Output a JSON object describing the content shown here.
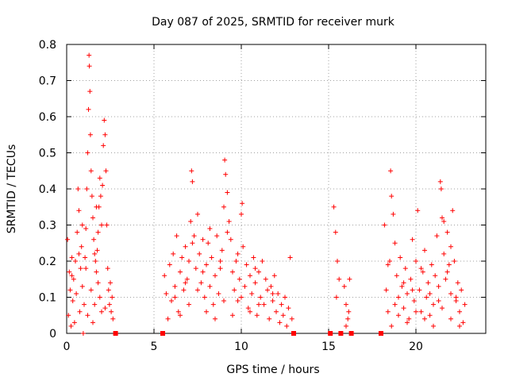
{
  "chart_data": {
    "type": "scatter",
    "title": "Day 087 of 2025, SRMTID for receiver murk",
    "xlabel": "GPS time / hours",
    "ylabel": "SRMTID / TECUs",
    "xlim": [
      0,
      24
    ],
    "ylim": [
      0,
      0.8
    ],
    "xticks": [
      0,
      5,
      10,
      15,
      20
    ],
    "yticks": [
      0,
      0.1,
      0.2,
      0.3,
      0.4,
      0.5,
      0.6,
      0.7,
      0.8
    ],
    "xtick_labels": [
      "0",
      "5",
      "10",
      "15",
      "20"
    ],
    "ytick_labels": [
      "0",
      "0.1",
      "0.2",
      "0.3",
      "0.4",
      "0.5",
      "0.6",
      "0.7",
      "0.8"
    ],
    "grid": true,
    "marker": "+",
    "color": "#ff0000",
    "series": [
      {
        "name": "SRMTID",
        "points": [
          [
            0.05,
            0.26
          ],
          [
            0.1,
            0.05
          ],
          [
            0.15,
            0.17
          ],
          [
            0.2,
            0.12
          ],
          [
            0.25,
            0.02
          ],
          [
            0.3,
            0.21
          ],
          [
            0.35,
            0.09
          ],
          [
            0.4,
            0.15
          ],
          [
            0.45,
            0.03
          ],
          [
            0.5,
            0.2
          ],
          [
            0.55,
            0.11
          ],
          [
            0.6,
            0.28
          ],
          [
            0.65,
            0.4
          ],
          [
            0.7,
            0.34
          ],
          [
            0.75,
            0.06
          ],
          [
            0.8,
            0.18
          ],
          [
            0.85,
            0.24
          ],
          [
            0.9,
            0.13
          ],
          [
            0.95,
            0.0
          ],
          [
            1.0,
            0.08
          ],
          [
            1.05,
            0.21
          ],
          [
            1.1,
            0.29
          ],
          [
            1.15,
            0.4
          ],
          [
            1.2,
            0.5
          ],
          [
            1.25,
            0.62
          ],
          [
            1.28,
            0.77
          ],
          [
            1.3,
            0.74
          ],
          [
            1.33,
            0.67
          ],
          [
            1.36,
            0.55
          ],
          [
            1.4,
            0.45
          ],
          [
            1.45,
            0.38
          ],
          [
            1.5,
            0.32
          ],
          [
            1.55,
            0.26
          ],
          [
            1.6,
            0.22
          ],
          [
            1.65,
            0.2
          ],
          [
            1.7,
            0.17
          ],
          [
            1.75,
            0.23
          ],
          [
            1.8,
            0.28
          ],
          [
            1.85,
            0.35
          ],
          [
            1.9,
            0.43
          ],
          [
            1.95,
            0.38
          ],
          [
            2.0,
            0.3
          ],
          [
            2.05,
            0.41
          ],
          [
            2.1,
            0.52
          ],
          [
            2.15,
            0.59
          ],
          [
            2.2,
            0.55
          ],
          [
            2.25,
            0.45
          ],
          [
            2.3,
            0.3
          ],
          [
            2.35,
            0.18
          ],
          [
            2.4,
            0.12
          ],
          [
            2.45,
            0.08
          ],
          [
            2.5,
            0.14
          ],
          [
            2.55,
            0.06
          ],
          [
            2.6,
            0.1
          ],
          [
            2.65,
            0.04
          ],
          [
            1.2,
            0.05
          ],
          [
            1.4,
            0.12
          ],
          [
            1.6,
            0.08
          ],
          [
            1.8,
            0.14
          ],
          [
            2.0,
            0.06
          ],
          [
            0.3,
            0.16
          ],
          [
            0.7,
            0.22
          ],
          [
            1.1,
            0.18
          ],
          [
            1.5,
            0.03
          ],
          [
            1.9,
            0.1
          ],
          [
            2.2,
            0.07
          ],
          [
            0.9,
            0.3
          ],
          [
            1.7,
            0.35
          ],
          [
            2.8,
            0.0
          ],
          [
            5.5,
            0.0
          ],
          [
            5.6,
            0.16
          ],
          [
            5.7,
            0.11
          ],
          [
            5.8,
            0.04
          ],
          [
            5.9,
            0.19
          ],
          [
            6.0,
            0.09
          ],
          [
            6.1,
            0.22
          ],
          [
            6.2,
            0.13
          ],
          [
            6.3,
            0.27
          ],
          [
            6.4,
            0.06
          ],
          [
            6.5,
            0.17
          ],
          [
            6.6,
            0.21
          ],
          [
            6.7,
            0.12
          ],
          [
            6.8,
            0.24
          ],
          [
            6.9,
            0.15
          ],
          [
            7.0,
            0.2
          ],
          [
            7.1,
            0.31
          ],
          [
            7.15,
            0.45
          ],
          [
            7.2,
            0.42
          ],
          [
            7.3,
            0.27
          ],
          [
            7.4,
            0.18
          ],
          [
            7.5,
            0.33
          ],
          [
            7.6,
            0.22
          ],
          [
            7.7,
            0.14
          ],
          [
            7.8,
            0.26
          ],
          [
            7.9,
            0.1
          ],
          [
            8.0,
            0.19
          ],
          [
            8.1,
            0.25
          ],
          [
            8.2,
            0.13
          ],
          [
            8.3,
            0.21
          ],
          [
            8.4,
            0.08
          ],
          [
            8.5,
            0.16
          ],
          [
            8.6,
            0.27
          ],
          [
            8.7,
            0.11
          ],
          [
            8.8,
            0.18
          ],
          [
            8.9,
            0.23
          ],
          [
            9.0,
            0.35
          ],
          [
            9.05,
            0.48
          ],
          [
            9.1,
            0.44
          ],
          [
            9.2,
            0.39
          ],
          [
            9.3,
            0.31
          ],
          [
            9.4,
            0.26
          ],
          [
            9.5,
            0.17
          ],
          [
            9.6,
            0.12
          ],
          [
            9.7,
            0.2
          ],
          [
            9.8,
            0.09
          ],
          [
            9.9,
            0.15
          ],
          [
            10.0,
            0.33
          ],
          [
            10.05,
            0.36
          ],
          [
            10.1,
            0.24
          ],
          [
            10.2,
            0.13
          ],
          [
            10.3,
            0.19
          ],
          [
            10.4,
            0.07
          ],
          [
            10.5,
            0.16
          ],
          [
            10.6,
            0.11
          ],
          [
            10.7,
            0.21
          ],
          [
            10.8,
            0.14
          ],
          [
            10.9,
            0.05
          ],
          [
            11.0,
            0.17
          ],
          [
            11.1,
            0.1
          ],
          [
            11.2,
            0.2
          ],
          [
            11.3,
            0.08
          ],
          [
            11.4,
            0.15
          ],
          [
            11.5,
            0.12
          ],
          [
            11.6,
            0.04
          ],
          [
            11.7,
            0.13
          ],
          [
            11.8,
            0.09
          ],
          [
            11.9,
            0.16
          ],
          [
            12.0,
            0.06
          ],
          [
            12.1,
            0.11
          ],
          [
            12.2,
            0.03
          ],
          [
            12.3,
            0.08
          ],
          [
            12.4,
            0.05
          ],
          [
            12.5,
            0.1
          ],
          [
            12.6,
            0.02
          ],
          [
            12.7,
            0.07
          ],
          [
            12.8,
            0.21
          ],
          [
            12.9,
            0.04
          ],
          [
            13.0,
            0.0
          ],
          [
            6.5,
            0.05
          ],
          [
            7.0,
            0.08
          ],
          [
            7.5,
            0.12
          ],
          [
            8.0,
            0.06
          ],
          [
            8.5,
            0.04
          ],
          [
            9.0,
            0.09
          ],
          [
            9.5,
            0.05
          ],
          [
            10.0,
            0.1
          ],
          [
            10.5,
            0.06
          ],
          [
            11.0,
            0.08
          ],
          [
            6.8,
            0.14
          ],
          [
            7.8,
            0.17
          ],
          [
            8.8,
            0.2
          ],
          [
            9.8,
            0.22
          ],
          [
            10.8,
            0.18
          ],
          [
            11.8,
            0.11
          ],
          [
            6.2,
            0.1
          ],
          [
            7.2,
            0.25
          ],
          [
            8.2,
            0.29
          ],
          [
            9.2,
            0.28
          ],
          [
            15.1,
            0.0
          ],
          [
            15.3,
            0.35
          ],
          [
            15.4,
            0.28
          ],
          [
            15.5,
            0.2
          ],
          [
            15.6,
            0.15
          ],
          [
            15.7,
            0.0
          ],
          [
            15.9,
            0.13
          ],
          [
            16.0,
            0.08
          ],
          [
            16.1,
            0.04
          ],
          [
            16.2,
            0.15
          ],
          [
            16.0,
            0.02
          ],
          [
            16.15,
            0.06
          ],
          [
            16.3,
            0.0
          ],
          [
            15.45,
            0.1
          ],
          [
            18.0,
            0.0
          ],
          [
            18.2,
            0.3
          ],
          [
            18.3,
            0.12
          ],
          [
            18.4,
            0.06
          ],
          [
            18.5,
            0.2
          ],
          [
            18.55,
            0.45
          ],
          [
            18.6,
            0.38
          ],
          [
            18.7,
            0.33
          ],
          [
            18.8,
            0.25
          ],
          [
            18.9,
            0.16
          ],
          [
            19.0,
            0.1
          ],
          [
            19.1,
            0.21
          ],
          [
            19.2,
            0.13
          ],
          [
            19.3,
            0.07
          ],
          [
            19.4,
            0.18
          ],
          [
            19.5,
            0.11
          ],
          [
            19.6,
            0.04
          ],
          [
            19.7,
            0.15
          ],
          [
            19.8,
            0.26
          ],
          [
            19.9,
            0.09
          ],
          [
            20.0,
            0.2
          ],
          [
            20.1,
            0.34
          ],
          [
            20.2,
            0.12
          ],
          [
            20.3,
            0.06
          ],
          [
            20.4,
            0.17
          ],
          [
            20.5,
            0.23
          ],
          [
            20.6,
            0.1
          ],
          [
            20.7,
            0.14
          ],
          [
            20.8,
            0.05
          ],
          [
            20.9,
            0.19
          ],
          [
            21.0,
            0.08
          ],
          [
            21.1,
            0.16
          ],
          [
            21.2,
            0.27
          ],
          [
            21.3,
            0.13
          ],
          [
            21.4,
            0.42
          ],
          [
            21.45,
            0.4
          ],
          [
            21.5,
            0.32
          ],
          [
            21.6,
            0.22
          ],
          [
            21.7,
            0.15
          ],
          [
            21.8,
            0.28
          ],
          [
            21.9,
            0.19
          ],
          [
            22.0,
            0.11
          ],
          [
            22.1,
            0.34
          ],
          [
            22.2,
            0.2
          ],
          [
            22.3,
            0.09
          ],
          [
            22.4,
            0.14
          ],
          [
            22.5,
            0.06
          ],
          [
            22.6,
            0.12
          ],
          [
            22.7,
            0.03
          ],
          [
            22.8,
            0.08
          ],
          [
            18.6,
            0.02
          ],
          [
            19.0,
            0.05
          ],
          [
            19.5,
            0.03
          ],
          [
            20.0,
            0.06
          ],
          [
            20.5,
            0.04
          ],
          [
            21.0,
            0.02
          ],
          [
            21.5,
            0.07
          ],
          [
            22.0,
            0.04
          ],
          [
            22.5,
            0.02
          ],
          [
            18.8,
            0.08
          ],
          [
            19.3,
            0.14
          ],
          [
            19.8,
            0.12
          ],
          [
            20.3,
            0.18
          ],
          [
            20.8,
            0.11
          ],
          [
            21.3,
            0.09
          ],
          [
            21.8,
            0.17
          ],
          [
            22.3,
            0.1
          ],
          [
            18.4,
            0.19
          ],
          [
            21.6,
            0.31
          ],
          [
            22.0,
            0.24
          ]
        ]
      }
    ],
    "gap_markers": [
      2.8,
      5.5,
      13.0,
      15.1,
      15.7,
      16.3,
      18.0
    ]
  }
}
